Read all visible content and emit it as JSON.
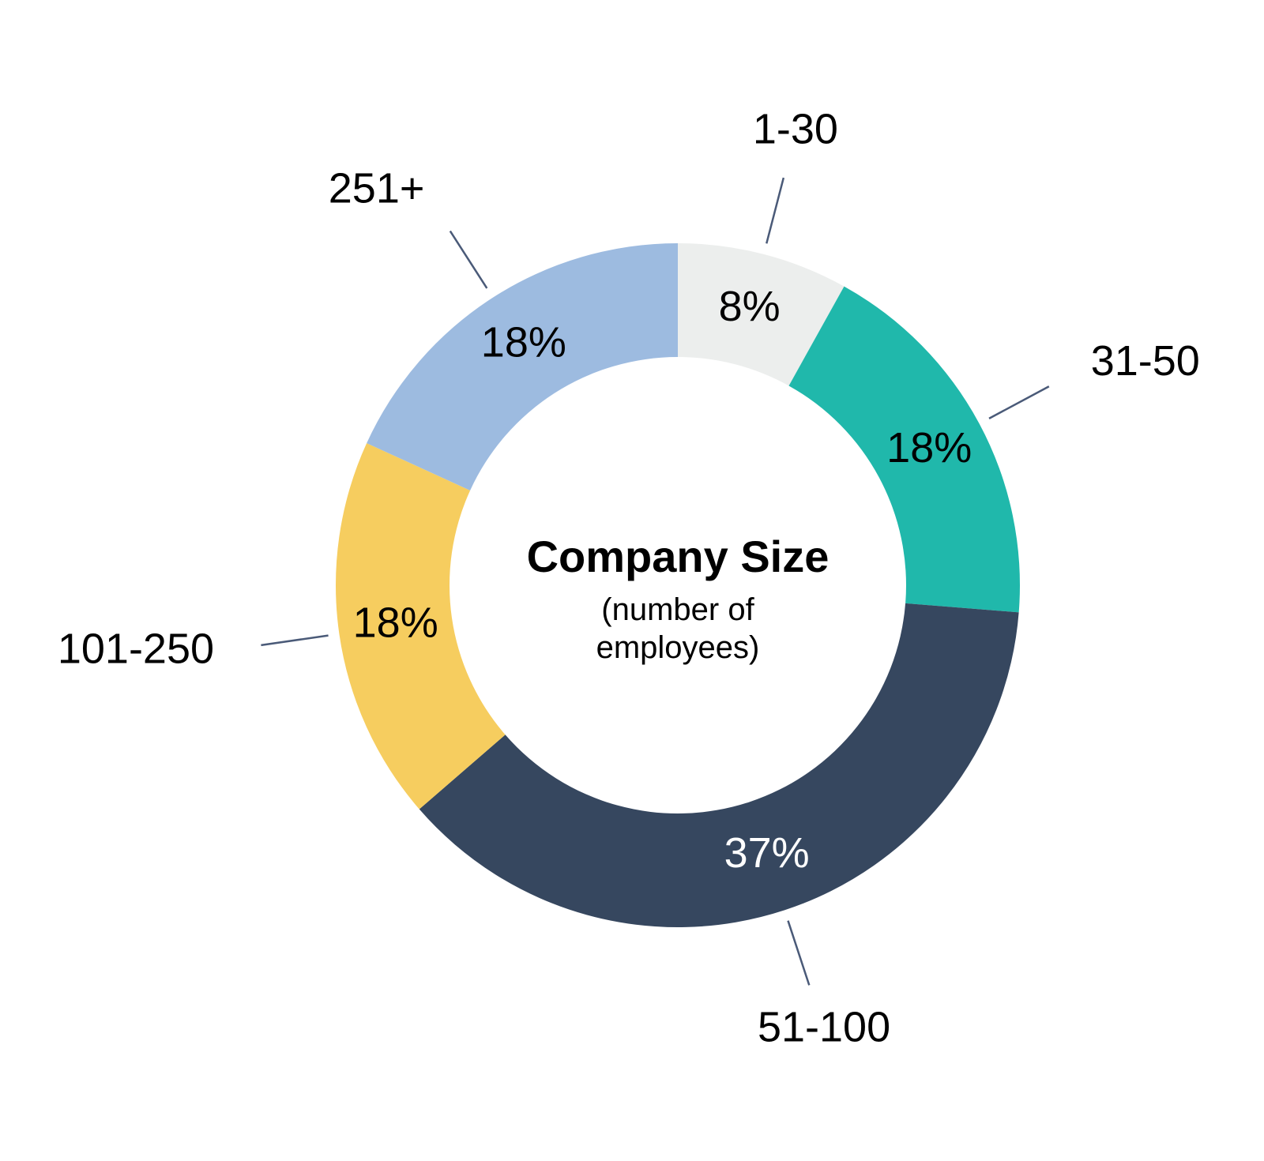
{
  "chart_data": {
    "type": "pie",
    "title": "Company Size",
    "subtitle": "(number of employees)",
    "categories": [
      "1-30",
      "31-50",
      "51-100",
      "101-250",
      "251+"
    ],
    "values": [
      8,
      18,
      37,
      18,
      18
    ],
    "value_labels": [
      "8%",
      "18%",
      "37%",
      "18%",
      "18%"
    ],
    "colors": [
      "#eceeed",
      "#20b8ab",
      "#36475f",
      "#f6cd5f",
      "#9dbbe0"
    ]
  }
}
